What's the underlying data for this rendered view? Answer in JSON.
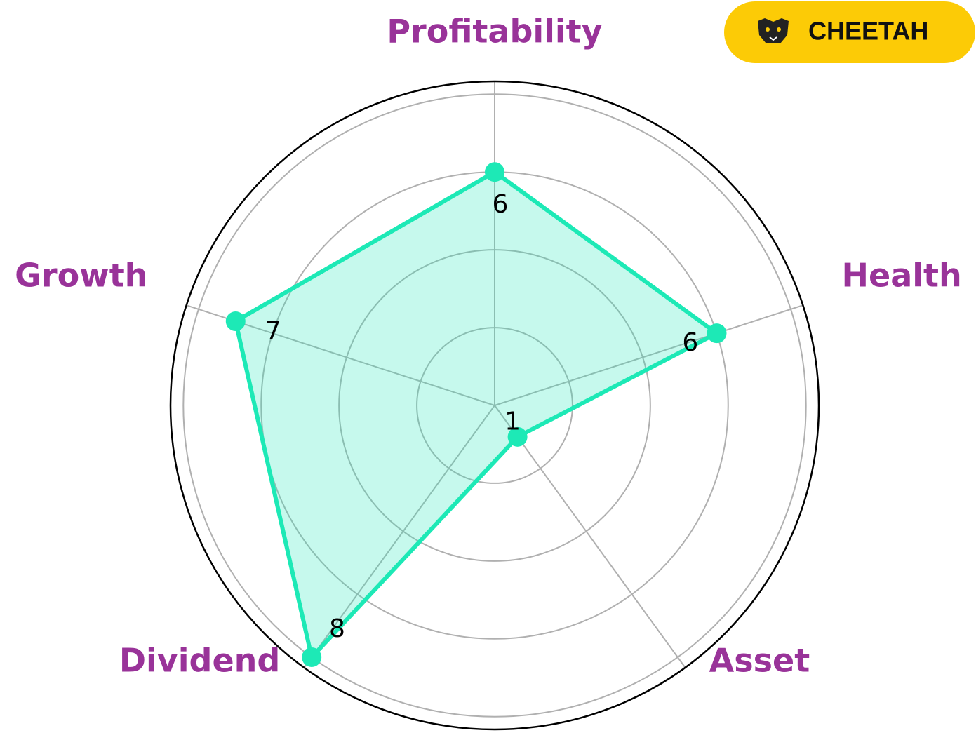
{
  "brand": "CHEETAH",
  "chart_data": {
    "type": "radar",
    "categories": [
      "Profitability",
      "Health",
      "Asset",
      "Dividend",
      "Growth"
    ],
    "values": [
      6,
      6,
      1,
      8,
      7
    ],
    "color": "#1de9b6",
    "label_color": "#993399",
    "ylim": [
      0,
      8.33
    ],
    "yticks": [
      2,
      4,
      6,
      8
    ],
    "grid": true
  }
}
